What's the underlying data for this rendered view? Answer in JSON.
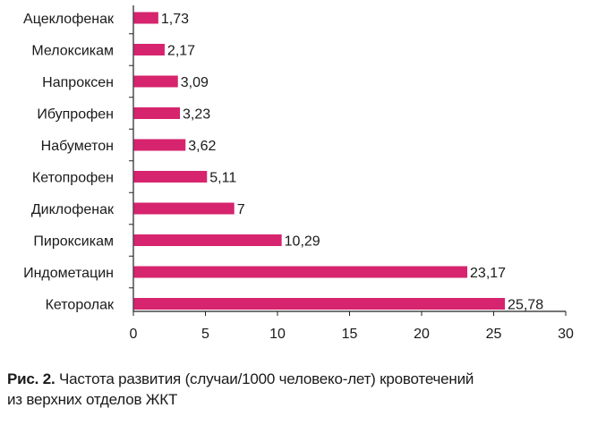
{
  "chart_data": {
    "type": "bar",
    "orientation": "horizontal",
    "categories": [
      "Ацеклофенак",
      "Мелоксикам",
      "Напроксен",
      "Ибупрофен",
      "Набуметон",
      "Кетопрофен",
      "Диклофенак",
      "Пироксикам",
      "Индометацин",
      "Кеторолак"
    ],
    "values": [
      1.73,
      2.17,
      3.09,
      3.23,
      3.62,
      5.11,
      7,
      10.29,
      23.17,
      25.78
    ],
    "value_labels": [
      "1,73",
      "2,17",
      "3,09",
      "3,23",
      "3,62",
      "5,11",
      "7",
      "10,29",
      "23,17",
      "25,78"
    ],
    "xlim": [
      0,
      30
    ],
    "xticks": [
      0,
      5,
      10,
      15,
      20,
      25,
      30
    ],
    "grid": false,
    "bar_color": "#d6246e"
  },
  "caption": {
    "label": "Рис. 2.",
    "line1": "Частота развития (случаи/1000 человеко-лет) кровотечений",
    "line2": "из верхних отделов ЖКТ"
  }
}
